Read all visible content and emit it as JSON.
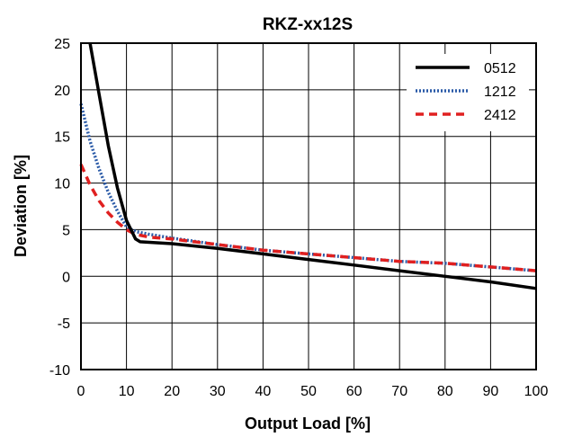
{
  "chart_data": {
    "type": "line",
    "title": "RKZ-xx12S",
    "xlabel": "Output Load [%]",
    "ylabel": "Deviation [%]",
    "xlim": [
      0,
      100
    ],
    "ylim": [
      -10,
      25
    ],
    "xticks": [
      0,
      10,
      20,
      30,
      40,
      50,
      60,
      70,
      80,
      90,
      100
    ],
    "yticks": [
      -10,
      -5,
      0,
      5,
      10,
      15,
      20,
      25
    ],
    "grid": true,
    "legend_position": "top-right",
    "series": [
      {
        "name": "0512",
        "color": "#000000",
        "style": "solid",
        "x": [
          2,
          4,
          6,
          8,
          10,
          12,
          13,
          20,
          30,
          40,
          50,
          60,
          70,
          80,
          90,
          100
        ],
        "y": [
          25,
          19.5,
          14,
          9.5,
          6,
          4,
          3.7,
          3.5,
          3.0,
          2.4,
          1.8,
          1.2,
          0.6,
          0,
          -0.6,
          -1.3
        ]
      },
      {
        "name": "1212",
        "color": "#2b5ba8",
        "style": "dotted",
        "x": [
          0,
          2,
          4,
          6,
          8,
          10,
          12,
          15,
          20,
          30,
          40,
          50,
          60,
          70,
          80,
          90,
          100
        ],
        "y": [
          18.5,
          14.5,
          11.5,
          9,
          7,
          5.3,
          4.8,
          4.5,
          4.1,
          3.4,
          2.8,
          2.4,
          2.0,
          1.6,
          1.4,
          1.0,
          0.6
        ]
      },
      {
        "name": "2412",
        "color": "#e02020",
        "style": "dashed",
        "x": [
          0,
          2,
          4,
          6,
          8,
          10,
          12,
          15,
          20,
          30,
          40,
          50,
          60,
          70,
          80,
          90,
          100
        ],
        "y": [
          12,
          9.8,
          8.1,
          6.8,
          5.8,
          5.0,
          4.5,
          4.2,
          4.0,
          3.4,
          2.8,
          2.4,
          2.0,
          1.6,
          1.4,
          1.0,
          0.6
        ]
      }
    ]
  }
}
